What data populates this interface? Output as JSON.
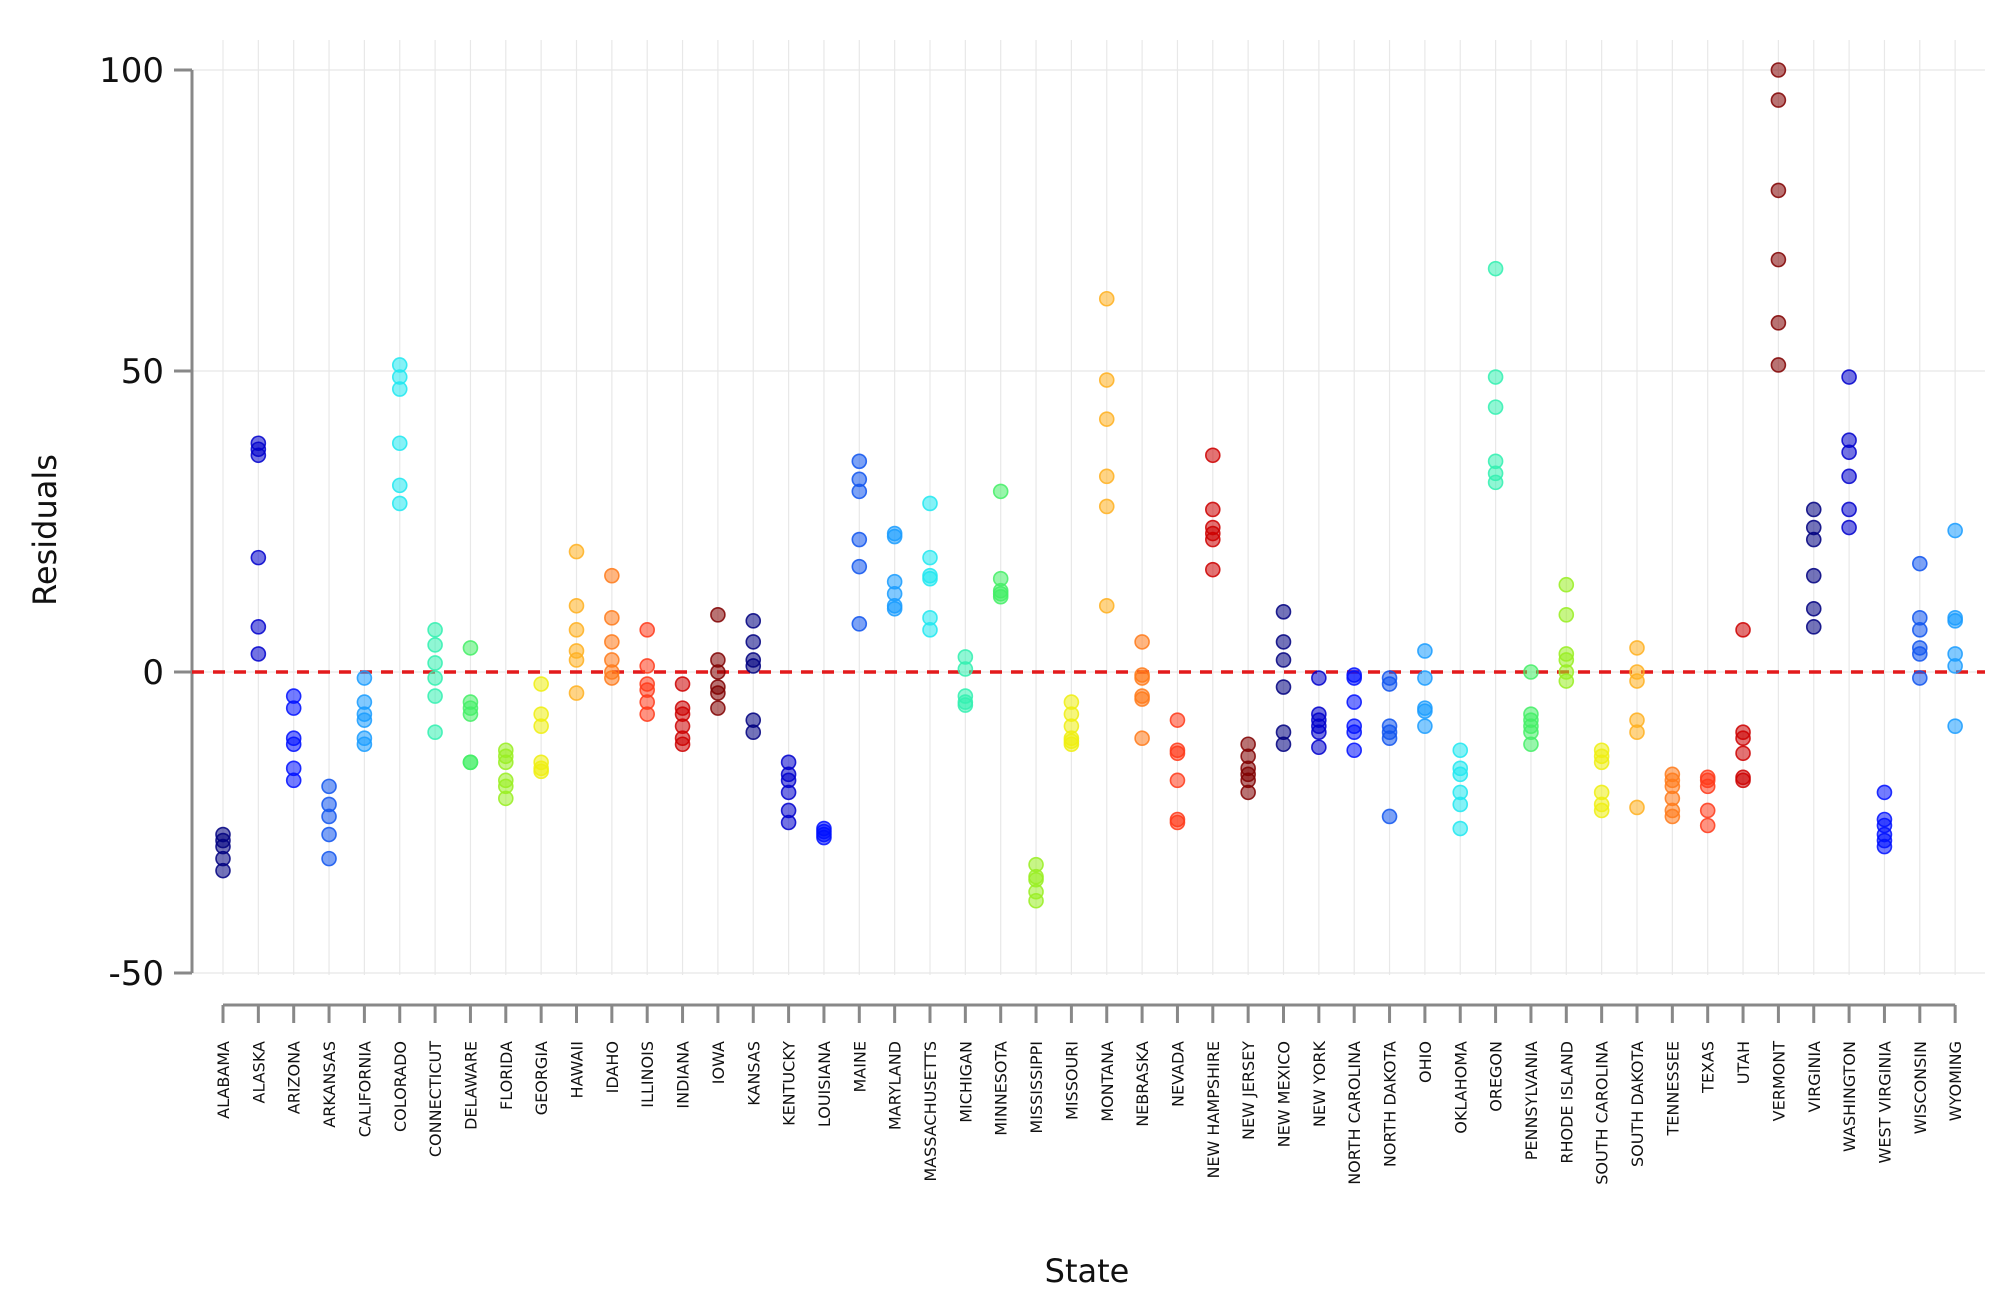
{
  "chart_data": {
    "type": "scatter",
    "title": "",
    "xlabel": "State",
    "ylabel": "Residuals",
    "ylim": [
      -50,
      100
    ],
    "yticks": [
      100,
      50,
      0,
      -50
    ],
    "ytick_labels": [
      "100",
      "50",
      "0",
      "-50"
    ],
    "grid": true,
    "reference_line": {
      "y": 0,
      "style": "dashed",
      "color": "#e31a1c"
    },
    "categories": [
      "ALABAMA",
      "ALASKA",
      "ARIZONA",
      "ARKANSAS",
      "CALIFORNIA",
      "COLORADO",
      "CONNECTICUT",
      "DELAWARE",
      "FLORIDA",
      "GEORGIA",
      "HAWAII",
      "IDAHO",
      "ILLINOIS",
      "INDIANA",
      "IOWA",
      "KANSAS",
      "KENTUCKY",
      "LOUISIANA",
      "MAINE",
      "MARYLAND",
      "MASSACHUSETTS",
      "MICHIGAN",
      "MINNESOTA",
      "MISSISSIPPI",
      "MISSOURI",
      "MONTANA",
      "NEBRASKA",
      "NEVADA",
      "NEW HAMPSHIRE",
      "NEW JERSEY",
      "NEW MEXICO",
      "NEW YORK",
      "NORTH CAROLINA",
      "NORTH DAKOTA",
      "OHIO",
      "OKLAHOMA",
      "OREGON",
      "PENNSYLVANIA",
      "RHODE ISLAND",
      "SOUTH CAROLINA",
      "SOUTH DAKOTA",
      "TENNESSEE",
      "TEXAS",
      "UTAH",
      "VERMONT",
      "VIRGINIA",
      "WASHINGTON",
      "WEST VIRGINIA",
      "WISCONSIN",
      "WYOMING"
    ],
    "series": [
      {
        "name": "ALABAMA",
        "color": "#000080",
        "values": [
          -27,
          -28,
          -29,
          -31,
          -33
        ]
      },
      {
        "name": "ALASKA",
        "color": "#0000cc",
        "values": [
          38,
          37,
          36,
          19,
          7.5,
          3
        ]
      },
      {
        "name": "ARIZONA",
        "color": "#0011ff",
        "values": [
          -4,
          -6,
          -11,
          -12,
          -16,
          -18
        ]
      },
      {
        "name": "ARKANSAS",
        "color": "#1155ee",
        "values": [
          -19,
          -22,
          -24,
          -27,
          -31
        ]
      },
      {
        "name": "CALIFORNIA",
        "color": "#1a9cff",
        "values": [
          -1,
          -5,
          -7,
          -8,
          -11,
          -12
        ]
      },
      {
        "name": "COLORADO",
        "color": "#20e8f0",
        "values": [
          51,
          49,
          47,
          38,
          31,
          28
        ]
      },
      {
        "name": "CONNECTICUT",
        "color": "#33f0b0",
        "values": [
          7,
          4.5,
          1.5,
          -1,
          -4,
          -10
        ]
      },
      {
        "name": "DELAWARE",
        "color": "#44ee66",
        "values": [
          4,
          -5,
          -6,
          -7,
          -15,
          -15
        ]
      },
      {
        "name": "FLORIDA",
        "color": "#99ee22",
        "values": [
          -13,
          -14,
          -15,
          -18,
          -19,
          -21
        ]
      },
      {
        "name": "GEORGIA",
        "color": "#eeee11",
        "values": [
          -2,
          -7,
          -9,
          -15,
          -16,
          -16.5
        ]
      },
      {
        "name": "HAWAII",
        "color": "#ffb020",
        "values": [
          20,
          11,
          7,
          3.5,
          2,
          -3.5
        ]
      },
      {
        "name": "IDAHO",
        "color": "#ff7a1a",
        "values": [
          16,
          9,
          5,
          2,
          0,
          -1
        ]
      },
      {
        "name": "ILLINOIS",
        "color": "#ff3a1a",
        "values": [
          7,
          1,
          -2,
          -3,
          -5,
          -7
        ]
      },
      {
        "name": "INDIANA",
        "color": "#cc0000",
        "values": [
          -2,
          -6,
          -7,
          -9,
          -11,
          -12
        ]
      },
      {
        "name": "IOWA",
        "color": "#800000",
        "values": [
          9.5,
          2,
          0,
          -2.5,
          -3.5,
          -6
        ]
      },
      {
        "name": "KANSAS",
        "color": "#000080",
        "values": [
          8.5,
          5,
          2,
          1,
          -8,
          -10
        ]
      },
      {
        "name": "KENTUCKY",
        "color": "#0000cc",
        "values": [
          -15,
          -17,
          -18,
          -20,
          -23,
          -25
        ]
      },
      {
        "name": "LOUISIANA",
        "color": "#0011ff",
        "values": [
          -26,
          -26.5,
          -27,
          -27.5
        ]
      },
      {
        "name": "MAINE",
        "color": "#1155ee",
        "values": [
          35,
          32,
          30,
          22,
          17.5,
          8
        ]
      },
      {
        "name": "MARYLAND",
        "color": "#1a9cff",
        "values": [
          23,
          22.5,
          15,
          13,
          11,
          10.5
        ]
      },
      {
        "name": "MASSACHUSETTS",
        "color": "#20e8f0",
        "values": [
          28,
          19,
          16,
          15.5,
          9,
          7
        ]
      },
      {
        "name": "MICHIGAN",
        "color": "#33f0b0",
        "values": [
          2.5,
          0.5,
          -4,
          -5,
          -5.5
        ]
      },
      {
        "name": "MINNESOTA",
        "color": "#44ee66",
        "values": [
          30,
          15.5,
          13.5,
          13,
          12.5
        ]
      },
      {
        "name": "MISSISSIPPI",
        "color": "#99ee22",
        "values": [
          -32,
          -34,
          -34.5,
          -36.5,
          -38
        ]
      },
      {
        "name": "MISSOURI",
        "color": "#eeee11",
        "values": [
          -5,
          -7,
          -9,
          -11,
          -11.5,
          -12
        ]
      },
      {
        "name": "MONTANA",
        "color": "#ffb020",
        "values": [
          62,
          48.5,
          42,
          32.5,
          27.5,
          11
        ]
      },
      {
        "name": "NEBRASKA",
        "color": "#ff7a1a",
        "values": [
          5,
          -0.5,
          -1,
          -4,
          -4.5,
          -11
        ]
      },
      {
        "name": "NEVADA",
        "color": "#ff3a1a",
        "values": [
          -8,
          -13,
          -13.5,
          -18,
          -24.5,
          -25
        ]
      },
      {
        "name": "NEW HAMPSHIRE",
        "color": "#cc0000",
        "values": [
          36,
          27,
          24,
          23,
          22,
          17
        ]
      },
      {
        "name": "NEW JERSEY",
        "color": "#800000",
        "values": [
          -12,
          -14,
          -16,
          -17,
          -18,
          -20
        ]
      },
      {
        "name": "NEW MEXICO",
        "color": "#000080",
        "values": [
          10,
          5,
          2,
          -2.5,
          -10,
          -12
        ]
      },
      {
        "name": "NEW YORK",
        "color": "#0000cc",
        "values": [
          -1,
          -7,
          -8,
          -9,
          -10,
          -12.5
        ]
      },
      {
        "name": "NORTH CAROLINA",
        "color": "#0011ff",
        "values": [
          -0.5,
          -1,
          -5,
          -9,
          -10,
          -13
        ]
      },
      {
        "name": "NORTH DAKOTA",
        "color": "#1155ee",
        "values": [
          -1,
          -2,
          -9,
          -10,
          -11,
          -24
        ]
      },
      {
        "name": "OHIO",
        "color": "#1a9cff",
        "values": [
          3.5,
          -1,
          -6,
          -6.5,
          -9
        ]
      },
      {
        "name": "OKLAHOMA",
        "color": "#20e8f0",
        "values": [
          -13,
          -16,
          -17,
          -20,
          -22,
          -26
        ]
      },
      {
        "name": "OREGON",
        "color": "#33f0b0",
        "values": [
          67,
          49,
          44,
          35,
          33,
          31.5
        ]
      },
      {
        "name": "PENNSYLVANIA",
        "color": "#44ee66",
        "values": [
          0,
          -7,
          -8,
          -9,
          -10,
          -12
        ]
      },
      {
        "name": "RHODE ISLAND",
        "color": "#99ee22",
        "values": [
          14.5,
          9.5,
          3,
          2,
          0,
          -1.5
        ]
      },
      {
        "name": "SOUTH CAROLINA",
        "color": "#eeee11",
        "values": [
          -13,
          -14,
          -15,
          -20,
          -22,
          -23
        ]
      },
      {
        "name": "SOUTH DAKOTA",
        "color": "#ffb020",
        "values": [
          4,
          0,
          -1.5,
          -8,
          -10,
          -22.5
        ]
      },
      {
        "name": "TENNESSEE",
        "color": "#ff7a1a",
        "values": [
          -17,
          -18,
          -19,
          -21,
          -23,
          -24
        ]
      },
      {
        "name": "TEXAS",
        "color": "#ff3a1a",
        "values": [
          -17.5,
          -18,
          -19,
          -23,
          -25.5
        ]
      },
      {
        "name": "UTAH",
        "color": "#cc0000",
        "values": [
          7,
          -10,
          -11,
          -13.5,
          -17.5,
          -18
        ]
      },
      {
        "name": "VERMONT",
        "color": "#800000",
        "values": [
          100,
          95,
          80,
          68.5,
          58,
          51
        ]
      },
      {
        "name": "VIRGINIA",
        "color": "#000080",
        "values": [
          27,
          24,
          22,
          16,
          10.5,
          7.5
        ]
      },
      {
        "name": "WASHINGTON",
        "color": "#0000cc",
        "values": [
          49,
          38.5,
          36.5,
          32.5,
          27,
          24
        ]
      },
      {
        "name": "WEST VIRGINIA",
        "color": "#0011ff",
        "values": [
          -20,
          -24.5,
          -25.5,
          -27,
          -28,
          -29
        ]
      },
      {
        "name": "WISCONSIN",
        "color": "#1155ee",
        "values": [
          18,
          9,
          7,
          4,
          3,
          -1
        ]
      },
      {
        "name": "WYOMING",
        "color": "#1a9cff",
        "values": [
          23.5,
          9,
          8.5,
          3,
          1,
          -9
        ]
      }
    ]
  }
}
